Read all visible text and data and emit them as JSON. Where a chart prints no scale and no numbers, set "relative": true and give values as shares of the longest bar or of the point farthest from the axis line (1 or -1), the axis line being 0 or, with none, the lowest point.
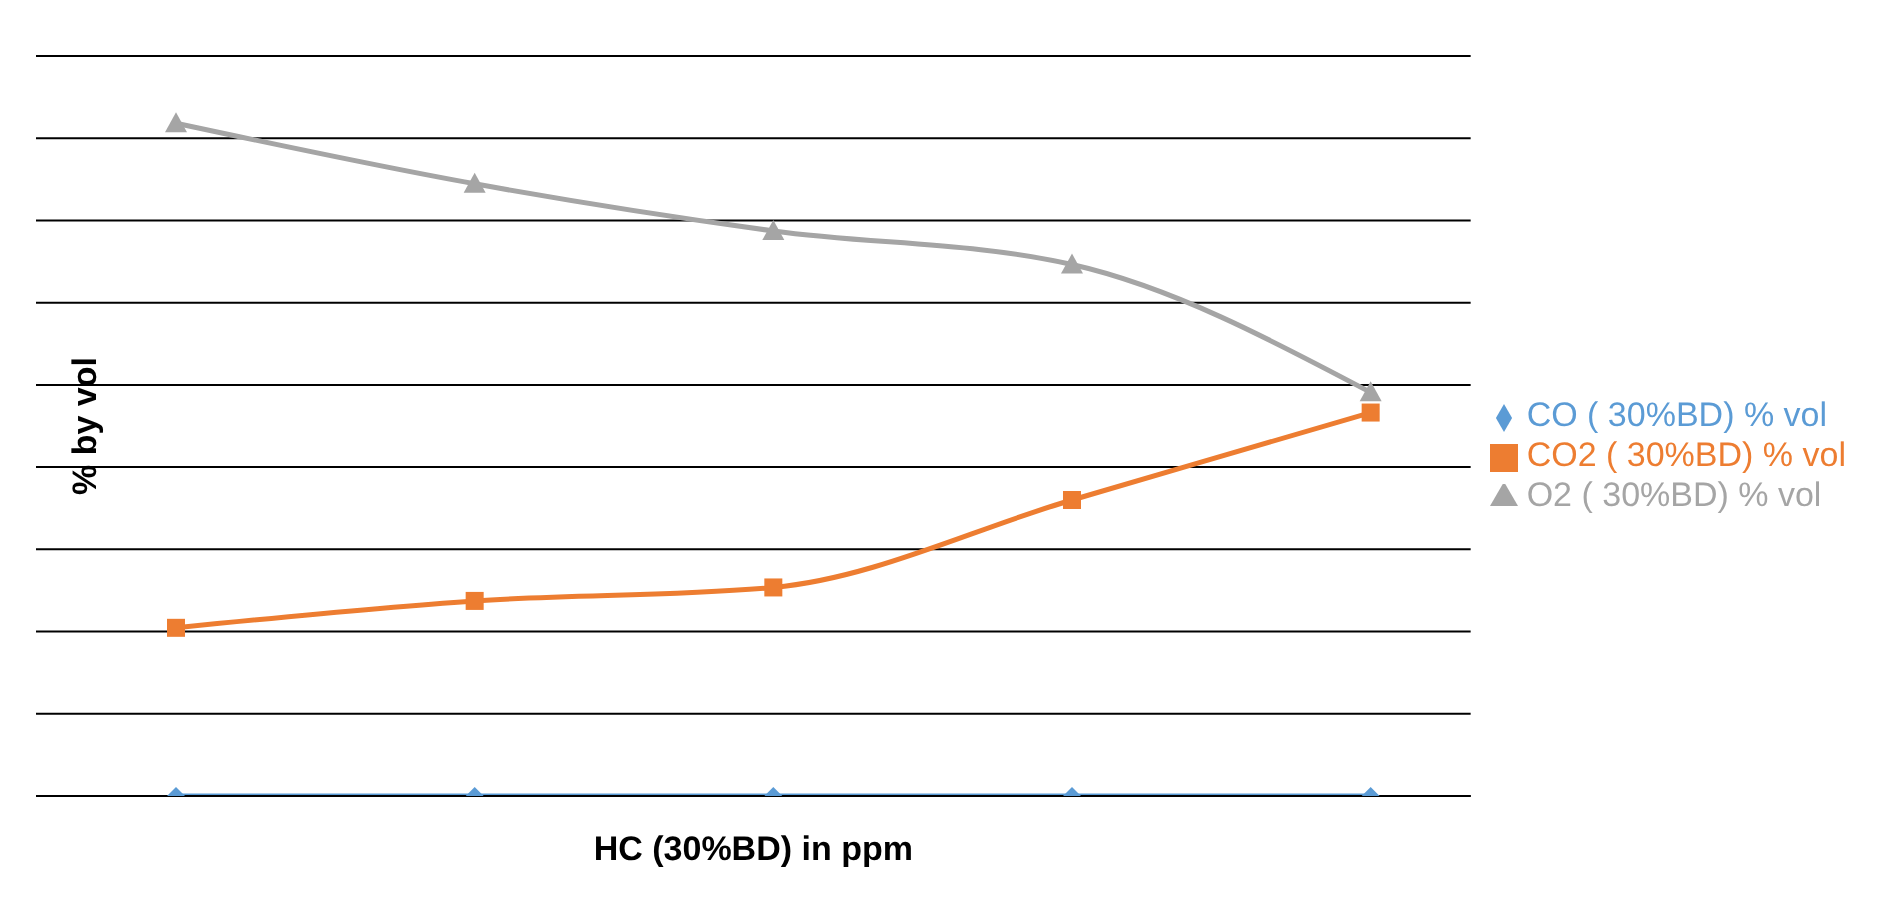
{
  "chart_data": {
    "type": "line",
    "relative": true,
    "ylabel": "% by vol",
    "xlabel": "HC (30%BD) in ppm",
    "categories": [
      null,
      null,
      null,
      null,
      null
    ],
    "grid": "y",
    "legend": "right",
    "line_style": "solid",
    "series": [
      {
        "name": "CO ( 30%BD) % vol",
        "color": "#5b9bd5",
        "marker": "diamond",
        "values": [
          0,
          0,
          0,
          0,
          0
        ]
      },
      {
        "name": "CO2 ( 30%BD) % vol",
        "color": "#ed7d31",
        "marker": "square",
        "values": [
          0.25,
          0.29,
          0.31,
          0.44,
          0.57
        ]
      },
      {
        "name": "O2 ( 30%BD) % vol",
        "color": "#a5a5a5",
        "marker": "triangle",
        "values": [
          1,
          0.91,
          0.84,
          0.79,
          0.6
        ]
      }
    ]
  }
}
